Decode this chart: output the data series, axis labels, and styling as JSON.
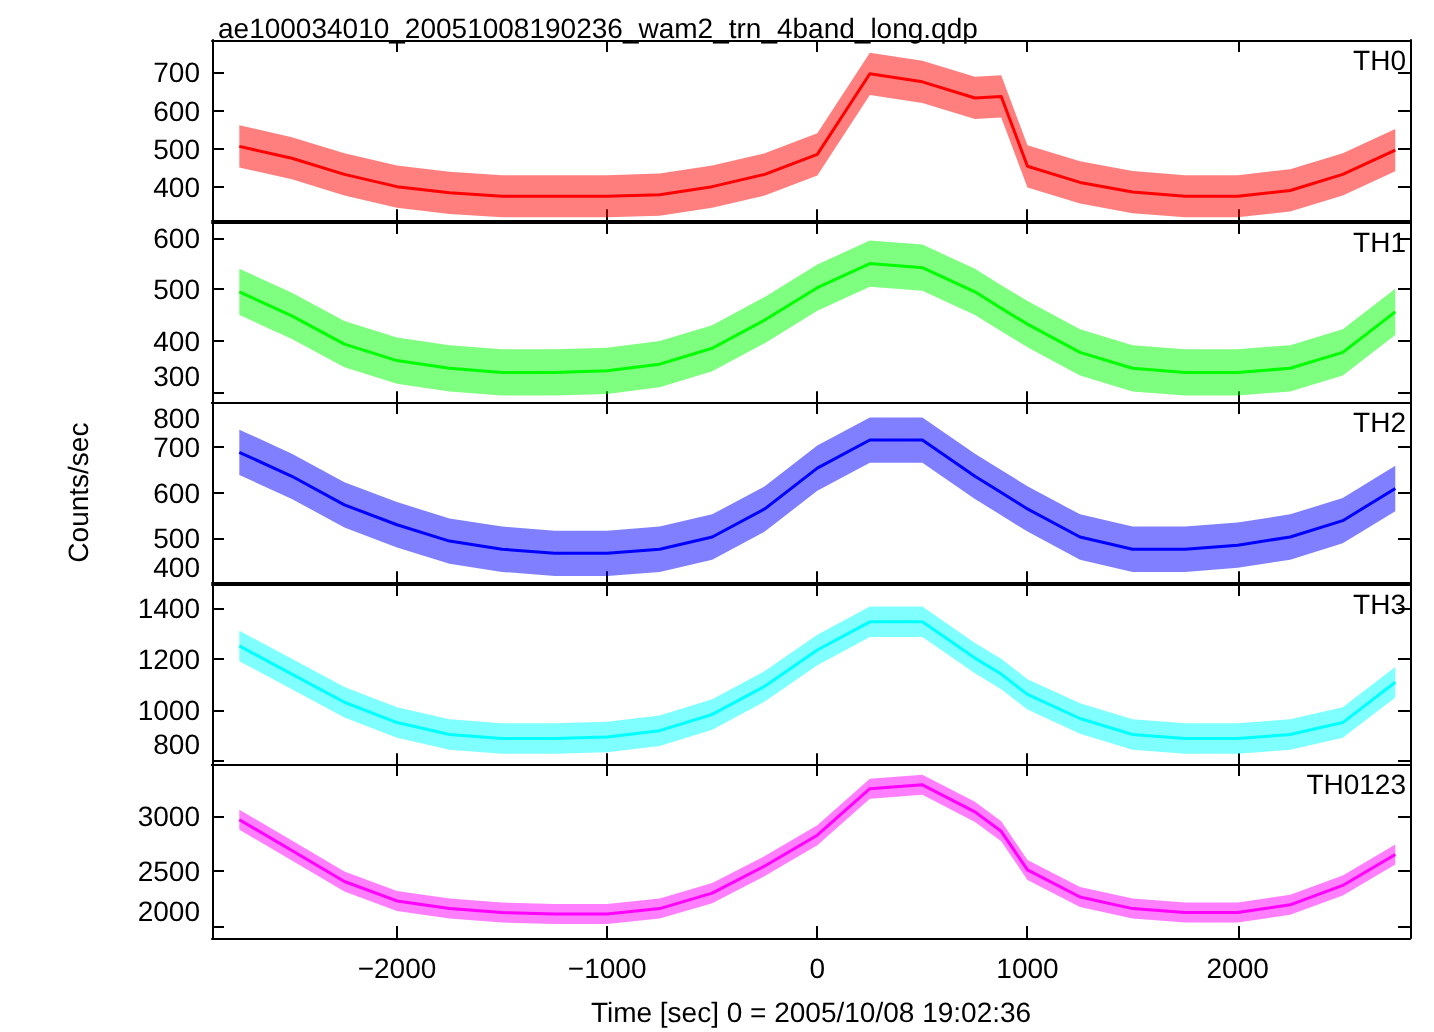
{
  "chart_data": [
    {
      "type": "line",
      "title": "ae100034010_20051008190236_wam2_trn_4band_long.qdp",
      "annotations": [
        "TH0"
      ],
      "tick_labels": "y",
      "x": [
        -2750,
        -2500,
        -2250,
        -2000,
        -1750,
        -1500,
        -1250,
        -1000,
        -750,
        -500,
        -250,
        0,
        250,
        500,
        750,
        875,
        1000,
        1250,
        1500,
        1750,
        2000,
        2250,
        2500,
        2750
      ],
      "xlim": [
        -2880,
        2820
      ],
      "xticks": [
        -2000,
        -1000,
        0,
        1000,
        2000
      ],
      "ylim": [
        312,
        784
      ],
      "yticks": [
        400,
        500,
        600,
        700
      ],
      "series": [
        {
          "color": "#ff0000",
          "values": [
            507,
            476,
            434,
            402,
            386,
            377,
            377,
            377,
            381,
            402,
            434,
            486,
            696,
            675,
            633,
            637,
            455,
            413,
            388,
            377,
            377,
            392,
            434,
            497
          ],
          "lower": [
            452,
            421,
            379,
            347,
            331,
            322,
            322,
            322,
            326,
            347,
            379,
            431,
            641,
            620,
            578,
            582,
            400,
            358,
            333,
            322,
            322,
            337,
            379,
            442
          ],
          "upper": [
            562,
            531,
            489,
            457,
            441,
            432,
            432,
            432,
            436,
            457,
            489,
            541,
            751,
            730,
            688,
            692,
            510,
            468,
            443,
            432,
            432,
            447,
            489,
            552
          ]
        }
      ]
    },
    {
      "type": "line",
      "annotations": [
        "TH1"
      ],
      "tick_labels": "y",
      "x": [
        -2750,
        -2500,
        -2250,
        -2000,
        -1750,
        -1500,
        -1250,
        -1000,
        -750,
        -500,
        -250,
        0,
        250,
        500,
        750,
        875,
        1000,
        1250,
        1500,
        1750,
        2000,
        2250,
        2500,
        2750
      ],
      "xlim": [
        -2880,
        2820
      ],
      "xticks": [
        -2000,
        -1000,
        0,
        1000,
        2000
      ],
      "ylim": [
        278,
        631
      ],
      "yticks": [
        300,
        400,
        500,
        600
      ],
      "series": [
        {
          "color": "#00ff00",
          "values": [
            495,
            448,
            393,
            361,
            346,
            338,
            338,
            341,
            354,
            385,
            440,
            503,
            550,
            542,
            495,
            463,
            432,
            377,
            346,
            338,
            338,
            346,
            377,
            456
          ],
          "lower": [
            450,
            403,
            348,
            316,
            301,
            293,
            293,
            296,
            309,
            340,
            395,
            458,
            505,
            497,
            450,
            418,
            387,
            332,
            301,
            293,
            293,
            301,
            332,
            411
          ],
          "upper": [
            540,
            493,
            438,
            406,
            391,
            383,
            383,
            386,
            399,
            430,
            485,
            548,
            595,
            587,
            540,
            508,
            477,
            422,
            391,
            383,
            383,
            391,
            422,
            501
          ]
        }
      ]
    },
    {
      "type": "line",
      "annotations": [
        "TH2"
      ],
      "tick_labels": "y",
      "ylabel": "Counts/sec",
      "x": [
        -2750,
        -2500,
        -2250,
        -2000,
        -1750,
        -1500,
        -1250,
        -1000,
        -750,
        -500,
        -250,
        0,
        250,
        500,
        750,
        875,
        1000,
        1250,
        1500,
        1750,
        2000,
        2250,
        2500,
        2750
      ],
      "xlim": [
        -2880,
        2820
      ],
      "xticks": [
        -2000,
        -1000,
        0,
        1000,
        2000
      ],
      "ylim": [
        400,
        800
      ],
      "yticks": [
        400,
        500,
        600,
        700,
        800
      ],
      "series": [
        {
          "color": "#0000ff",
          "values": [
            689,
            636,
            573,
            529,
            493,
            475,
            466,
            466,
            475,
            502,
            564,
            654,
            716,
            716,
            636,
            600,
            564,
            502,
            475,
            475,
            484,
            502,
            538,
            609
          ],
          "lower": [
            639,
            586,
            523,
            479,
            443,
            425,
            416,
            416,
            425,
            452,
            514,
            604,
            666,
            666,
            586,
            550,
            514,
            452,
            425,
            425,
            434,
            452,
            488,
            559
          ],
          "upper": [
            739,
            686,
            623,
            579,
            543,
            525,
            516,
            516,
            525,
            552,
            614,
            704,
            766,
            766,
            686,
            650,
            614,
            552,
            525,
            525,
            534,
            552,
            588,
            659
          ]
        }
      ]
    },
    {
      "type": "line",
      "annotations": [
        "TH3"
      ],
      "tick_labels": "y",
      "x": [
        -2750,
        -2500,
        -2250,
        -2000,
        -1750,
        -1500,
        -1250,
        -1000,
        -750,
        -500,
        -250,
        0,
        250,
        500,
        750,
        875,
        1000,
        1250,
        1500,
        1750,
        2000,
        2250,
        2500,
        2750
      ],
      "xlim": [
        -2880,
        2820
      ],
      "xticks": [
        -2000,
        -1000,
        0,
        1000,
        2000
      ],
      "ylim": [
        781,
        1495
      ],
      "yticks": [
        800,
        1000,
        1200,
        1400
      ],
      "series": [
        {
          "color": "#00ffff",
          "values": [
            1251,
            1140,
            1029,
            949,
            902,
            886,
            886,
            892,
            917,
            981,
            1092,
            1235,
            1346,
            1346,
            1203,
            1140,
            1060,
            965,
            902,
            886,
            886,
            902,
            949,
            1108
          ],
          "lower": [
            1191,
            1080,
            969,
            889,
            842,
            826,
            826,
            832,
            857,
            921,
            1032,
            1175,
            1286,
            1286,
            1143,
            1080,
            1000,
            905,
            842,
            826,
            826,
            842,
            889,
            1048
          ],
          "upper": [
            1311,
            1200,
            1089,
            1009,
            962,
            946,
            946,
            952,
            977,
            1041,
            1152,
            1295,
            1406,
            1406,
            1263,
            1200,
            1120,
            1025,
            962,
            946,
            946,
            962,
            1009,
            1168
          ]
        }
      ]
    },
    {
      "type": "line",
      "annotations": [
        "TH0123"
      ],
      "xlabel": "Time [sec] 0 = 2005/10/08 19:02:36",
      "x": [
        -2750,
        -2500,
        -2250,
        -2000,
        -1750,
        -1500,
        -1250,
        -1000,
        -750,
        -500,
        -250,
        0,
        250,
        500,
        750,
        875,
        1000,
        1250,
        1500,
        1750,
        2000,
        2250,
        2500,
        2750
      ],
      "xlim": [
        -2880,
        2820
      ],
      "xticks": [
        -2000,
        -1000,
        0,
        1000,
        2000
      ],
      "ylim": [
        1903,
        3465
      ],
      "yticks": [
        2000,
        2500,
        3000
      ],
      "series": [
        {
          "color": "#ff00ff",
          "values": [
            2965,
            2688,
            2410,
            2236,
            2167,
            2132,
            2118,
            2118,
            2167,
            2306,
            2549,
            2826,
            3243,
            3278,
            3035,
            2861,
            2514,
            2271,
            2167,
            2132,
            2132,
            2201,
            2375,
            2653
          ],
          "lower": [
            2875,
            2598,
            2320,
            2146,
            2077,
            2042,
            2028,
            2028,
            2077,
            2216,
            2459,
            2736,
            3153,
            3188,
            2945,
            2771,
            2424,
            2181,
            2077,
            2042,
            2042,
            2111,
            2285,
            2563
          ],
          "upper": [
            3055,
            2778,
            2500,
            2326,
            2257,
            2222,
            2208,
            2208,
            2257,
            2396,
            2639,
            2916,
            3333,
            3368,
            3125,
            2951,
            2604,
            2361,
            2257,
            2222,
            2222,
            2291,
            2465,
            2743
          ]
        }
      ]
    }
  ]
}
